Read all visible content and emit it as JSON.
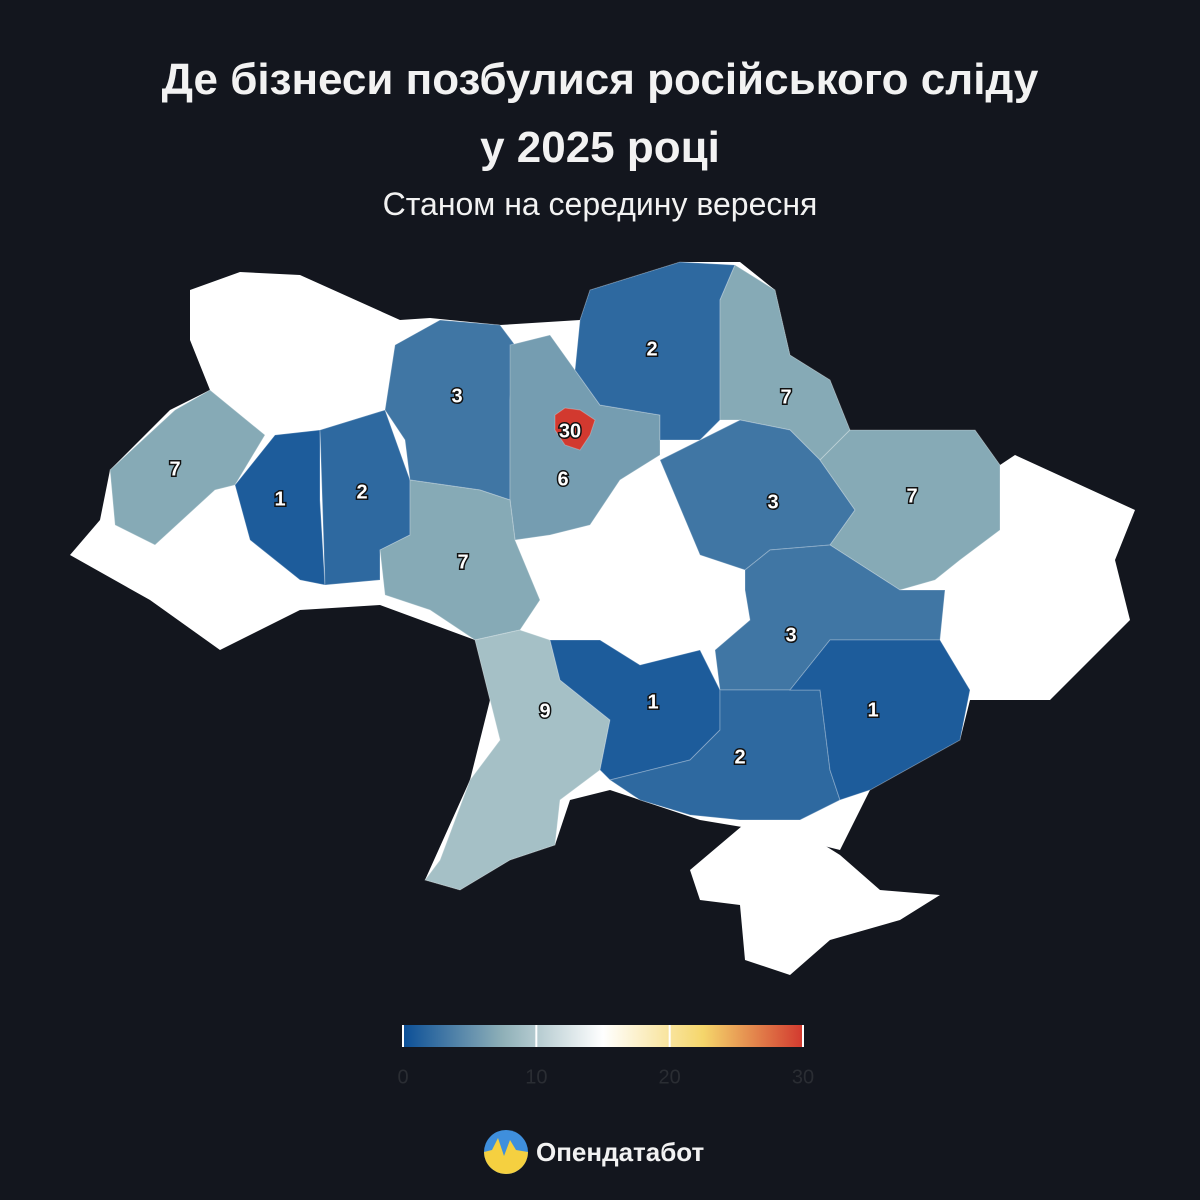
{
  "chart_data": {
    "type": "choropleth",
    "title": "Де бізнеси позбулися російського сліду у 2025 році",
    "subtitle": "Станом на середину вересня",
    "values": [
      7,
      1,
      2,
      3,
      6,
      30,
      2,
      7,
      7,
      3,
      7,
      3,
      9,
      1,
      2,
      1
    ],
    "colorscale": [
      "#0b4f97",
      "#8fb0b8",
      "#ffffff",
      "#f5d66b",
      "#d2392f"
    ],
    "colorbar_lim": [
      0,
      30
    ],
    "colorbar_ticks": [
      0,
      10,
      20,
      30
    ],
    "no_data_color": "#ffffff"
  },
  "brand": "Опендатабот"
}
